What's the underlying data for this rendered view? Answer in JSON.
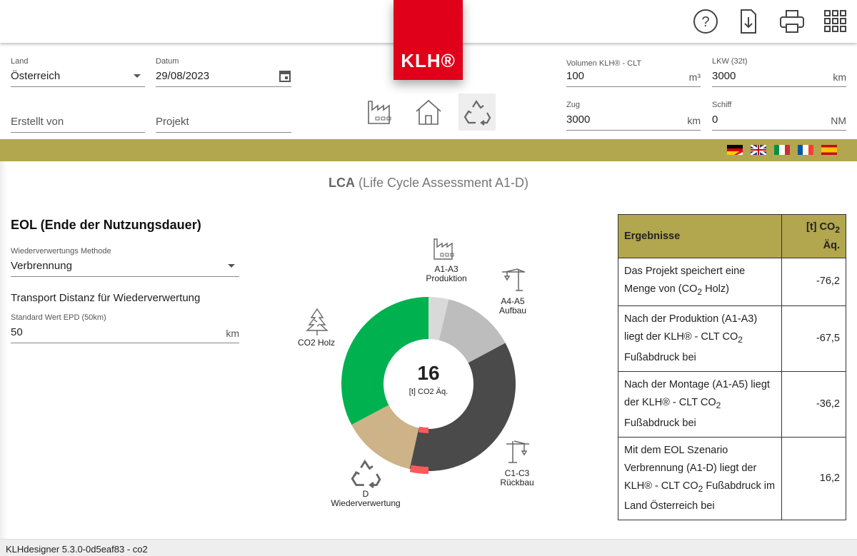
{
  "header": {
    "logo": "KLH®",
    "icons": [
      "help-icon",
      "download-file-icon",
      "print-icon",
      "apps-grid-icon"
    ]
  },
  "form": {
    "land": {
      "label": "Land",
      "value": "Österreich"
    },
    "datum": {
      "label": "Datum",
      "value": "29/08/2023"
    },
    "erstellt": {
      "placeholder": "Erstellt von"
    },
    "projekt": {
      "placeholder": "Projekt"
    },
    "volumen": {
      "label": "Volumen KLH® - CLT",
      "value": "100",
      "unit": "m³"
    },
    "lkw": {
      "label": "LKW (32t)",
      "value": "3000",
      "unit": "km"
    },
    "zug": {
      "label": "Zug",
      "value": "3000",
      "unit": "km"
    },
    "schiff": {
      "label": "Schiff",
      "value": "0",
      "unit": "NM"
    }
  },
  "phases": [
    "factory-icon",
    "house-icon",
    "recycle-icon"
  ],
  "languages": [
    "de-at",
    "en",
    "it",
    "fr",
    "es"
  ],
  "colors": {
    "brand": "#e1001a",
    "band": "#b2a64e",
    "holz": "#00b14f",
    "a1a3": "#d9d9d9",
    "a4a5": "#bdbdbd",
    "c1c3": "#4a4a4a",
    "d": "#cdb387",
    "marker": "#ff5a5a"
  },
  "main": {
    "title_bold": "LCA",
    "title_rest": " (Life Cycle Assessment A1-D)"
  },
  "eol": {
    "heading": "EOL (Ende der Nutzungsdauer)",
    "method_label": "Wiederverwertungs Methode",
    "method_value": "Verbrennung",
    "transport_heading": "Transport Distanz für Wiederverwertung",
    "distance_label": "Standard Wert EPD (50km)",
    "distance_value": "50",
    "distance_unit": "km"
  },
  "chart_data": {
    "type": "pie",
    "center_value": "16",
    "center_unit": "[t] CO2 Äq.",
    "segments": [
      {
        "label": "A1-A3",
        "label2": "Produktion",
        "value": 8.7,
        "color": "#d9d9d9"
      },
      {
        "label": "A4-A5",
        "label2": "Aufbau",
        "value": 31.3,
        "color": "#bdbdbd"
      },
      {
        "label": "C1-C3",
        "label2": "Rückbau",
        "value": 84.4,
        "color": "#4a4a4a"
      },
      {
        "label": "D",
        "label2": "Wiederverwertung",
        "value": -32.0,
        "color": "#cdb387"
      },
      {
        "label": "CO2 Holz",
        "label2": "",
        "value": -76.2,
        "color": "#00b14f"
      }
    ]
  },
  "results": {
    "header": "Ergebnisse",
    "unit_header_pre": "[t] CO",
    "unit_header_sub": "2",
    "unit_header_post": " Äq.",
    "rows": [
      {
        "pre": "Das Projekt speichert eine Menge von (CO",
        "sub": "2",
        "post": " Holz)",
        "value": "-76,2"
      },
      {
        "pre": "Nach der Produktion (A1-A3) liegt der KLH® - CLT CO",
        "sub": "2",
        "post": " Fußabdruck bei",
        "value": "-67,5"
      },
      {
        "pre": "Nach der Montage (A1-A5) liegt der KLH® - CLT CO",
        "sub": "2",
        "post": " Fußabdruck bei",
        "value": "-36,2"
      },
      {
        "pre": "Mit dem EOL Szenario Verbrennung (A1-D) liegt der KLH® - CLT CO",
        "sub": "2",
        "post": " Fußabdruck im Land Österreich bei",
        "value": "16,2"
      }
    ]
  },
  "footer": {
    "version": "KLHdesigner 5.3.0-0d5eaf83 - co2"
  }
}
